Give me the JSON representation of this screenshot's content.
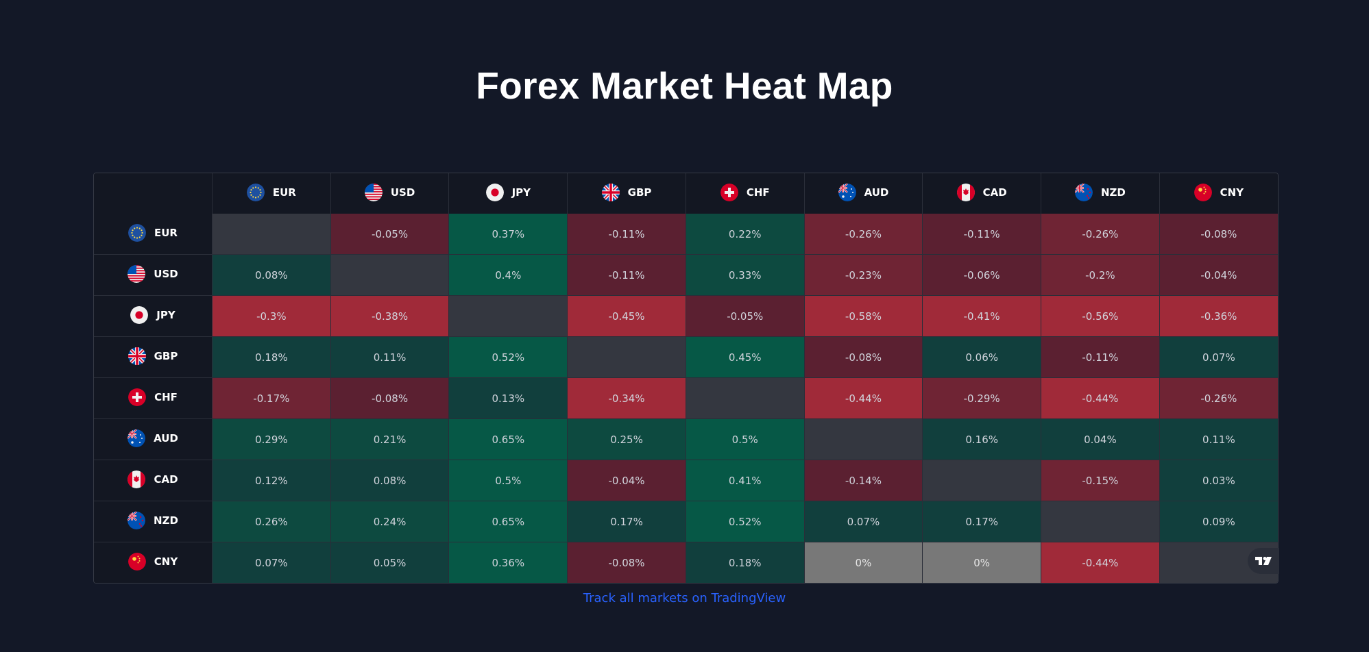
{
  "title": "Forex Market Heat Map",
  "footer_link": "Track all markets on TradingView",
  "currencies": [
    "EUR",
    "USD",
    "JPY",
    "GBP",
    "CHF",
    "AUD",
    "CAD",
    "NZD",
    "CNY"
  ],
  "icons": {
    "EUR": "eu-flag-icon",
    "USD": "us-flag-icon",
    "JPY": "japan-flag-icon",
    "GBP": "uk-flag-icon",
    "CHF": "switzerland-flag-icon",
    "AUD": "australia-flag-icon",
    "CAD": "canada-flag-icon",
    "NZD": "new-zealand-flag-icon",
    "CNY": "china-flag-icon"
  },
  "colors": {
    "background": "#131827",
    "empty": "#343740",
    "neutral": "#787878",
    "positive_light": "#113f3d",
    "positive_mid": "#0d4a40",
    "positive_strong": "#065846",
    "negative_light": "#5b2031",
    "negative_mid": "#6f2434",
    "negative_strong": "#a02a39",
    "link": "#2962ff"
  },
  "rows": [
    {
      "currency": "EUR",
      "values": [
        "",
        "-0.05%",
        "0.37%",
        "-0.11%",
        "0.22%",
        "-0.26%",
        "-0.11%",
        "-0.26%",
        "-0.08%"
      ]
    },
    {
      "currency": "USD",
      "values": [
        "0.08%",
        "",
        "0.4%",
        "-0.11%",
        "0.33%",
        "-0.23%",
        "-0.06%",
        "-0.2%",
        "-0.04%"
      ]
    },
    {
      "currency": "JPY",
      "values": [
        "-0.3%",
        "-0.38%",
        "",
        "-0.45%",
        "-0.05%",
        "-0.58%",
        "-0.41%",
        "-0.56%",
        "-0.36%"
      ]
    },
    {
      "currency": "GBP",
      "values": [
        "0.18%",
        "0.11%",
        "0.52%",
        "",
        "0.45%",
        "-0.08%",
        "0.06%",
        "-0.11%",
        "0.07%"
      ]
    },
    {
      "currency": "CHF",
      "values": [
        "-0.17%",
        "-0.08%",
        "0.13%",
        "-0.34%",
        "",
        "-0.44%",
        "-0.29%",
        "-0.44%",
        "-0.26%"
      ]
    },
    {
      "currency": "AUD",
      "values": [
        "0.29%",
        "0.21%",
        "0.65%",
        "0.25%",
        "0.5%",
        "",
        "0.16%",
        "0.04%",
        "0.11%"
      ]
    },
    {
      "currency": "CAD",
      "values": [
        "0.12%",
        "0.08%",
        "0.5%",
        "-0.04%",
        "0.41%",
        "-0.14%",
        "",
        "-0.15%",
        "0.03%"
      ]
    },
    {
      "currency": "NZD",
      "values": [
        "0.26%",
        "0.24%",
        "0.65%",
        "0.17%",
        "0.52%",
        "0.07%",
        "0.17%",
        "",
        "0.09%"
      ]
    },
    {
      "currency": "CNY",
      "values": [
        "0.07%",
        "0.05%",
        "0.36%",
        "-0.08%",
        "0.18%",
        "0%",
        "0%",
        "-0.44%",
        ""
      ]
    }
  ]
}
